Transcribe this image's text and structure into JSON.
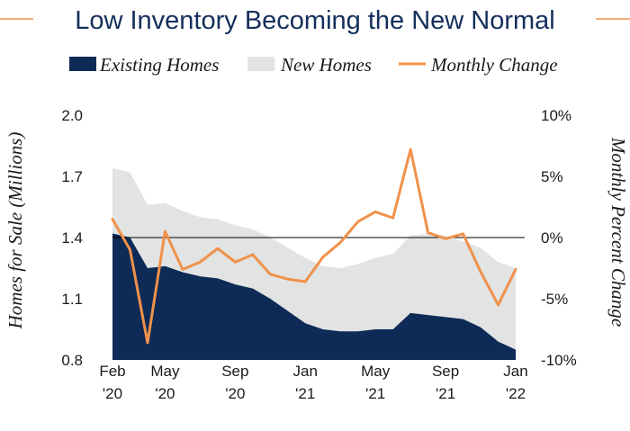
{
  "chart_data": {
    "type": "area",
    "title": "Low Inventory Becoming the New Normal",
    "colors": {
      "title": "#142f5b",
      "existing": "#0e2a56",
      "new": "#e2e3e3",
      "change": "#f0914a",
      "rule": "#f0914a",
      "zero_line": "#000000"
    },
    "legend": {
      "placement": "top",
      "entries": [
        {
          "key": "existing",
          "label": "Existing Homes",
          "marker": "filled-rect"
        },
        {
          "key": "new",
          "label": "New Homes",
          "marker": "filled-rect"
        },
        {
          "key": "change",
          "label": "Monthly Change",
          "marker": "line"
        }
      ]
    },
    "x": [
      "2020-02",
      "2020-03",
      "2020-04",
      "2020-05",
      "2020-06",
      "2020-07",
      "2020-08",
      "2020-09",
      "2020-10",
      "2020-11",
      "2020-12",
      "2021-01",
      "2021-02",
      "2021-03",
      "2021-04",
      "2021-05",
      "2021-06",
      "2021-07",
      "2021-08",
      "2021-09",
      "2021-10",
      "2021-11",
      "2021-12",
      "2022-01"
    ],
    "x_ticks": [
      {
        "index": 0,
        "line1": "Feb",
        "line2": "'20"
      },
      {
        "index": 3,
        "line1": "May",
        "line2": "'20"
      },
      {
        "index": 7,
        "line1": "Sep",
        "line2": "'20"
      },
      {
        "index": 11,
        "line1": "Jan",
        "line2": "'21"
      },
      {
        "index": 15,
        "line1": "May",
        "line2": "'21"
      },
      {
        "index": 19,
        "line1": "Sep",
        "line2": "'21"
      },
      {
        "index": 23,
        "line1": "Jan",
        "line2": "'22"
      }
    ],
    "y_left": {
      "label": "Homes for Sale (Millions)",
      "min": 0.8,
      "max": 2.0,
      "ticks": [
        "2.0",
        "1.7",
        "1.4",
        "1.1",
        "0.8"
      ]
    },
    "y_right": {
      "label": "Monthly Percent Change",
      "min": -10,
      "max": 10,
      "ticks": [
        "10%",
        "5%",
        "0%",
        "-5%",
        "-10%"
      ]
    },
    "series": [
      {
        "key": "existing",
        "name": "Existing Homes",
        "axis": "left",
        "kind": "stacked-area",
        "values": [
          1.42,
          1.4,
          1.25,
          1.26,
          1.23,
          1.21,
          1.2,
          1.17,
          1.15,
          1.1,
          1.04,
          0.98,
          0.95,
          0.94,
          0.94,
          0.95,
          0.95,
          1.03,
          1.02,
          1.01,
          1.0,
          0.96,
          0.89,
          0.85
        ]
      },
      {
        "key": "new",
        "name": "New Homes",
        "axis": "left",
        "kind": "stacked-area-top",
        "values": [
          1.74,
          1.72,
          1.56,
          1.57,
          1.53,
          1.5,
          1.49,
          1.46,
          1.44,
          1.4,
          1.35,
          1.3,
          1.26,
          1.25,
          1.27,
          1.3,
          1.32,
          1.41,
          1.42,
          1.41,
          1.38,
          1.35,
          1.28,
          1.25
        ]
      },
      {
        "key": "change",
        "name": "Monthly Change",
        "axis": "right",
        "kind": "line",
        "values": [
          1.5,
          -1.0,
          -8.6,
          0.5,
          -2.6,
          -2.0,
          -0.9,
          -2.0,
          -1.4,
          -3.0,
          -3.4,
          -3.6,
          -1.6,
          -0.4,
          1.3,
          2.1,
          1.6,
          7.2,
          0.4,
          -0.1,
          0.3,
          -2.8,
          -5.5,
          -2.6
        ]
      }
    ]
  }
}
